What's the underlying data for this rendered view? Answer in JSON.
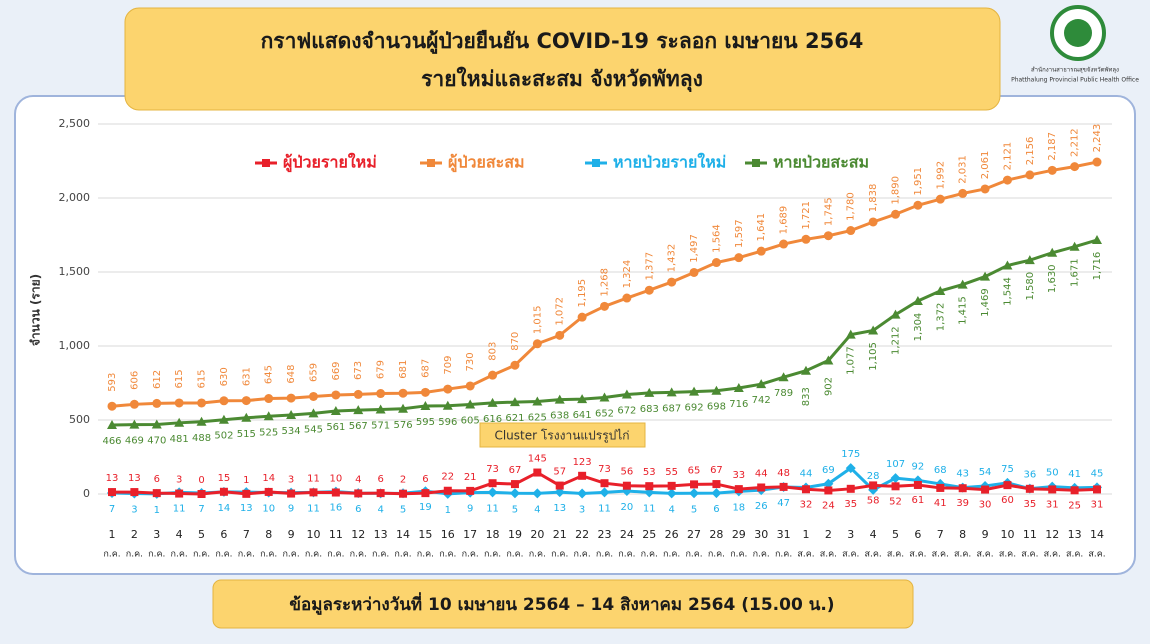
{
  "chart_data": {
    "type": "line",
    "title": [
      "กราฟแสดงจำนวนผู้ป่วยยืนยัน COVID-19 ระลอก เมษายน 2564",
      "รายใหม่และสะสม จังหวัดพัทลุง"
    ],
    "footer": "ข้อมูลระหว่างวันที่ 10 เมษายน 2564 – 14 สิงหาคม 2564 (15.00 น.)",
    "organization": [
      "สำนักงานสาธารณสุขจังหวัดพัทลุง",
      "Phatthalung Provincial Public Health Office"
    ],
    "y_label": "จำนวน (ราย)",
    "annotation": "Cluster โรงงานแปรรูปไก่",
    "categories": [
      "1",
      "2",
      "3",
      "4",
      "5",
      "6",
      "7",
      "8",
      "9",
      "10",
      "11",
      "12",
      "13",
      "14",
      "15",
      "16",
      "17",
      "18",
      "19",
      "20",
      "21",
      "22",
      "23",
      "24",
      "25",
      "26",
      "27",
      "28",
      "29",
      "30",
      "31",
      "1",
      "2",
      "3",
      "4",
      "5",
      "6",
      "7",
      "8",
      "9",
      "10",
      "11",
      "12",
      "13",
      "14"
    ],
    "category_months": [
      "ก.ค.",
      "ก.ค.",
      "ก.ค.",
      "ก.ค.",
      "ก.ค.",
      "ก.ค.",
      "ก.ค.",
      "ก.ค.",
      "ก.ค.",
      "ก.ค.",
      "ก.ค.",
      "ก.ค.",
      "ก.ค.",
      "ก.ค.",
      "ก.ค.",
      "ก.ค.",
      "ก.ค.",
      "ก.ค.",
      "ก.ค.",
      "ก.ค.",
      "ก.ค.",
      "ก.ค.",
      "ก.ค.",
      "ก.ค.",
      "ก.ค.",
      "ก.ค.",
      "ก.ค.",
      "ก.ค.",
      "ก.ค.",
      "ก.ค.",
      "ก.ค.",
      "ส.ค.",
      "ส.ค.",
      "ส.ค.",
      "ส.ค.",
      "ส.ค.",
      "ส.ค.",
      "ส.ค.",
      "ส.ค.",
      "ส.ค.",
      "ส.ค.",
      "ส.ค.",
      "ส.ค.",
      "ส.ค.",
      "ส.ค."
    ],
    "ylim": [
      0,
      2500
    ],
    "yticks": [
      0,
      500,
      {
        "value": 1000,
        "label": "1,000"
      },
      {
        "value": 1500,
        "label": "1,500"
      },
      {
        "value": 2000,
        "label": "2,000"
      },
      {
        "value": 2500,
        "label": "2,500"
      }
    ],
    "series": [
      {
        "name": "ผู้ป่วยรายใหม่",
        "color": "#e8202a",
        "values": [
          13,
          13,
          6,
          3,
          0,
          15,
          1,
          14,
          3,
          11,
          10,
          4,
          6,
          2,
          6,
          22,
          21,
          73,
          67,
          145,
          57,
          123,
          73,
          56,
          53,
          55,
          65,
          67,
          33,
          44,
          48,
          32,
          24,
          35,
          58,
          52,
          61,
          41,
          39,
          30,
          60,
          35,
          31,
          25,
          31
        ]
      },
      {
        "name": "ผู้ป่วยสะสม",
        "color": "#f0883a",
        "values": [
          593,
          606,
          612,
          615,
          615,
          630,
          631,
          645,
          648,
          659,
          669,
          673,
          679,
          681,
          687,
          709,
          730,
          803,
          870,
          1015,
          1072,
          1195,
          1268,
          1324,
          1377,
          1432,
          1497,
          1564,
          1597,
          1641,
          1689,
          1721,
          1745,
          1780,
          1838,
          1890,
          1951,
          1992,
          2031,
          2061,
          2121,
          2156,
          2187,
          2212,
          2243
        ],
        "value_labels": [
          "593",
          "606",
          "612",
          "615",
          "615",
          "630",
          "631",
          "645",
          "648",
          "659",
          "669",
          "673",
          "679",
          "681",
          "687",
          "709",
          "730",
          "803",
          "870",
          "1,015",
          "1,072",
          "1,195",
          "1,268",
          "1,324",
          "1,377",
          "1,432",
          "1,497",
          "1,564",
          "1,597",
          "1,641",
          "1,689",
          "1,721",
          "1,745",
          "1,780",
          "1,838",
          "1,890",
          "1,951",
          "1,992",
          "2,031",
          "2,061",
          "2,121",
          "2,156",
          "2,187",
          "2,212",
          "2,243"
        ]
      },
      {
        "name": "หายป่วยรายใหม่",
        "color": "#1fb0e8",
        "values": [
          7,
          3,
          1,
          11,
          7,
          14,
          13,
          10,
          9,
          11,
          16,
          6,
          4,
          5,
          19,
          1,
          9,
          11,
          5,
          4,
          13,
          3,
          11,
          20,
          11,
          4,
          5,
          6,
          18,
          26,
          47,
          44,
          69,
          175,
          28,
          107,
          92,
          68,
          43,
          54,
          75,
          36,
          50,
          41,
          45
        ]
      },
      {
        "name": "หายป่วยสะสม",
        "color": "#4b8a32",
        "values": [
          466,
          469,
          470,
          481,
          488,
          502,
          515,
          525,
          534,
          545,
          561,
          567,
          571,
          576,
          595,
          596,
          605,
          616,
          621,
          625,
          638,
          641,
          652,
          672,
          683,
          687,
          692,
          698,
          716,
          742,
          789,
          833,
          902,
          1077,
          1105,
          1212,
          1304,
          1372,
          1415,
          1469,
          1544,
          1580,
          1630,
          1671,
          1716
        ],
        "value_labels": [
          "466",
          "469",
          "470",
          "481",
          "488",
          "502",
          "515",
          "525",
          "534",
          "545",
          "561",
          "567",
          "571",
          "576",
          "595",
          "596",
          "605",
          "616",
          "621",
          "625",
          "638",
          "641",
          "652",
          "672",
          "683",
          "687",
          "692",
          "698",
          "716",
          "742",
          "789",
          "833",
          "902",
          "1,077",
          "1,105",
          "1,212",
          "1,304",
          "1,372",
          "1,415",
          "1,469",
          "1,544",
          "1,580",
          "1,630",
          "1,671",
          "1,716"
        ]
      }
    ]
  }
}
